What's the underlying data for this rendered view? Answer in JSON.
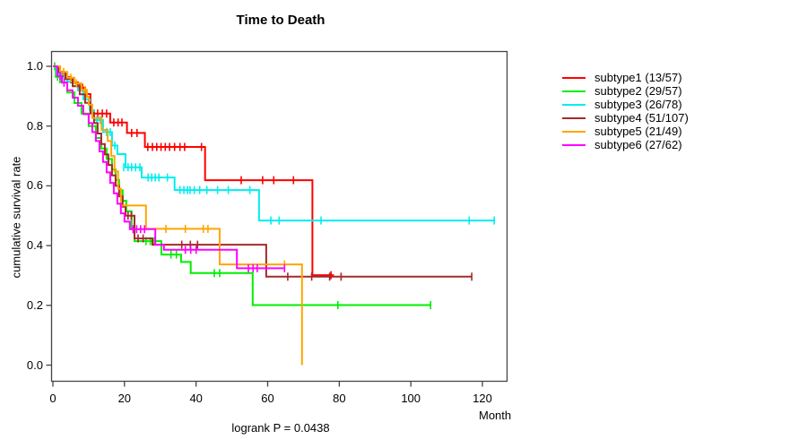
{
  "page_background": "#ffffff",
  "chart_data": {
    "type": "line",
    "variant": "kaplan-meier-step-curves",
    "title": "Time to Death",
    "xlabel": "Month",
    "ylabel": "cumulative survival rate",
    "annotation": "logrank P = 0.0438",
    "xlim": [
      0,
      127
    ],
    "ylim": [
      0.0,
      1.0
    ],
    "x_ticks": [
      0,
      20,
      40,
      60,
      80,
      100,
      120
    ],
    "y_tick_labels": [
      "0.0",
      "0.2",
      "0.4",
      "0.6",
      "0.8",
      "1.0"
    ],
    "y_tick_values": [
      0.0,
      0.2,
      0.4,
      0.6,
      0.8,
      1.0
    ],
    "grid": false,
    "legend_position": "right",
    "axis_color": "#444444",
    "series": [
      {
        "label": "subtype1 (13/57)",
        "events": "13/57",
        "color": "#ff0000",
        "steps": [
          [
            0,
            1.0
          ],
          [
            1.5,
            0.982
          ],
          [
            3,
            0.964
          ],
          [
            5,
            0.946
          ],
          [
            7,
            0.928
          ],
          [
            9,
            0.907
          ],
          [
            10.5,
            0.842
          ],
          [
            16,
            0.812
          ],
          [
            20.7,
            0.777
          ],
          [
            25.7,
            0.73
          ],
          [
            42.5,
            0.619
          ],
          [
            72.5,
            0.301
          ],
          [
            78.5,
            0.301
          ]
        ],
        "censors": [
          [
            7.5,
            0.928
          ],
          [
            8.3,
            0.928
          ],
          [
            12.5,
            0.842
          ],
          [
            13.8,
            0.842
          ],
          [
            15,
            0.842
          ],
          [
            17,
            0.812
          ],
          [
            18.2,
            0.812
          ],
          [
            19.3,
            0.812
          ],
          [
            22,
            0.777
          ],
          [
            23.5,
            0.777
          ],
          [
            26.5,
            0.73
          ],
          [
            27.8,
            0.73
          ],
          [
            29,
            0.73
          ],
          [
            30.2,
            0.73
          ],
          [
            31.4,
            0.73
          ],
          [
            32.6,
            0.73
          ],
          [
            34,
            0.73
          ],
          [
            35.5,
            0.73
          ],
          [
            36.8,
            0.73
          ],
          [
            41.5,
            0.73
          ],
          [
            52.6,
            0.619
          ],
          [
            58.6,
            0.619
          ],
          [
            61.7,
            0.619
          ],
          [
            67.2,
            0.619
          ],
          [
            77.7,
            0.301
          ]
        ]
      },
      {
        "label": "subtype2 (29/57)",
        "events": "29/57",
        "color": "#00ee00",
        "steps": [
          [
            0,
            1.0
          ],
          [
            0.8,
            0.965
          ],
          [
            2,
            0.947
          ],
          [
            4,
            0.912
          ],
          [
            6,
            0.877
          ],
          [
            8,
            0.842
          ],
          [
            10,
            0.8
          ],
          [
            12,
            0.76
          ],
          [
            13.5,
            0.725
          ],
          [
            15,
            0.69
          ],
          [
            16.5,
            0.655
          ],
          [
            17.5,
            0.62
          ],
          [
            18.5,
            0.585
          ],
          [
            19.5,
            0.55
          ],
          [
            20.5,
            0.515
          ],
          [
            22,
            0.46
          ],
          [
            22.8,
            0.415
          ],
          [
            30.3,
            0.37
          ],
          [
            35.8,
            0.345
          ],
          [
            38.5,
            0.308
          ],
          [
            55.8,
            0.201
          ],
          [
            105.5,
            0.201
          ]
        ],
        "censors": [
          [
            0.5,
            1.0
          ],
          [
            1.3,
            0.965
          ],
          [
            26,
            0.415
          ],
          [
            27.2,
            0.415
          ],
          [
            28.3,
            0.415
          ],
          [
            33,
            0.37
          ],
          [
            34.5,
            0.37
          ],
          [
            45.1,
            0.308
          ],
          [
            46.6,
            0.308
          ],
          [
            79.6,
            0.201
          ],
          [
            105.5,
            0.201
          ]
        ]
      },
      {
        "label": "subtype3 (26/78)",
        "events": "26/78",
        "color": "#00eeee",
        "steps": [
          [
            0,
            1.0
          ],
          [
            1,
            0.974
          ],
          [
            2.5,
            0.961
          ],
          [
            4,
            0.948
          ],
          [
            5.5,
            0.935
          ],
          [
            7,
            0.92
          ],
          [
            8.5,
            0.89
          ],
          [
            10.3,
            0.853
          ],
          [
            11.5,
            0.82
          ],
          [
            14,
            0.78
          ],
          [
            16.5,
            0.735
          ],
          [
            18,
            0.706
          ],
          [
            20.3,
            0.662
          ],
          [
            24.8,
            0.628
          ],
          [
            34,
            0.586
          ],
          [
            57.6,
            0.484
          ],
          [
            123.3,
            0.484
          ]
        ],
        "censors": [
          [
            2,
            0.974
          ],
          [
            3.2,
            0.961
          ],
          [
            9,
            0.89
          ],
          [
            12.3,
            0.82
          ],
          [
            13.2,
            0.82
          ],
          [
            15,
            0.78
          ],
          [
            16,
            0.78
          ],
          [
            17.3,
            0.735
          ],
          [
            19.8,
            0.662
          ],
          [
            21,
            0.662
          ],
          [
            22,
            0.662
          ],
          [
            23.1,
            0.662
          ],
          [
            24.3,
            0.662
          ],
          [
            26.6,
            0.628
          ],
          [
            27.6,
            0.628
          ],
          [
            28.6,
            0.628
          ],
          [
            29.6,
            0.628
          ],
          [
            32,
            0.628
          ],
          [
            35.5,
            0.586
          ],
          [
            36.6,
            0.586
          ],
          [
            37.6,
            0.586
          ],
          [
            38.3,
            0.586
          ],
          [
            39.5,
            0.586
          ],
          [
            41,
            0.586
          ],
          [
            43,
            0.586
          ],
          [
            46,
            0.586
          ],
          [
            49,
            0.586
          ],
          [
            55,
            0.586
          ],
          [
            60.9,
            0.484
          ],
          [
            63.2,
            0.484
          ],
          [
            74.9,
            0.484
          ],
          [
            116.3,
            0.484
          ],
          [
            123.3,
            0.484
          ]
        ]
      },
      {
        "label": "subtype4 (51/107)",
        "events": "51/107",
        "color": "#a52a2a",
        "steps": [
          [
            0,
            1.0
          ],
          [
            1.5,
            0.98
          ],
          [
            3.5,
            0.957
          ],
          [
            5.5,
            0.933
          ],
          [
            7.5,
            0.906
          ],
          [
            9,
            0.878
          ],
          [
            10.5,
            0.845
          ],
          [
            11.5,
            0.81
          ],
          [
            12.5,
            0.775
          ],
          [
            13.5,
            0.74
          ],
          [
            14.5,
            0.705
          ],
          [
            15.5,
            0.67
          ],
          [
            16.5,
            0.635
          ],
          [
            17.5,
            0.6
          ],
          [
            18.5,
            0.565
          ],
          [
            19.5,
            0.53
          ],
          [
            20.3,
            0.5
          ],
          [
            22.8,
            0.424
          ],
          [
            27.8,
            0.403
          ],
          [
            59.6,
            0.296
          ],
          [
            117,
            0.296
          ]
        ],
        "censors": [
          [
            21,
            0.5
          ],
          [
            21.9,
            0.5
          ],
          [
            23.8,
            0.424
          ],
          [
            25.2,
            0.424
          ],
          [
            36,
            0.403
          ],
          [
            38.4,
            0.403
          ],
          [
            40.4,
            0.403
          ],
          [
            65.6,
            0.296
          ],
          [
            72.3,
            0.296
          ],
          [
            77.3,
            0.296
          ],
          [
            80.5,
            0.296
          ],
          [
            117,
            0.296
          ]
        ]
      },
      {
        "label": "subtype5 (21/49)",
        "events": "21/49",
        "color": "#ffa500",
        "steps": [
          [
            0,
            1.0
          ],
          [
            2,
            0.981
          ],
          [
            4,
            0.962
          ],
          [
            6,
            0.943
          ],
          [
            8,
            0.921
          ],
          [
            9.5,
            0.898
          ],
          [
            10,
            0.872
          ],
          [
            11,
            0.827
          ],
          [
            13.6,
            0.787
          ],
          [
            15.3,
            0.75
          ],
          [
            16.3,
            0.7
          ],
          [
            17.2,
            0.648
          ],
          [
            18.2,
            0.59
          ],
          [
            19,
            0.534
          ],
          [
            26,
            0.456
          ],
          [
            46.6,
            0.337
          ],
          [
            69.6,
            0.0
          ]
        ],
        "censors": [
          [
            3,
            0.981
          ],
          [
            5,
            0.962
          ],
          [
            6.6,
            0.943
          ],
          [
            9,
            0.921
          ],
          [
            31.6,
            0.456
          ],
          [
            37,
            0.456
          ],
          [
            42,
            0.456
          ],
          [
            43.3,
            0.456
          ],
          [
            64.7,
            0.337
          ]
        ]
      },
      {
        "label": "subtype6 (27/62)",
        "events": "27/62",
        "color": "#ff00ff",
        "steps": [
          [
            0,
            1.0
          ],
          [
            1.2,
            0.968
          ],
          [
            2.5,
            0.945
          ],
          [
            4,
            0.92
          ],
          [
            5.5,
            0.895
          ],
          [
            7,
            0.868
          ],
          [
            8.5,
            0.84
          ],
          [
            10,
            0.81
          ],
          [
            11,
            0.78
          ],
          [
            12,
            0.75
          ],
          [
            13,
            0.715
          ],
          [
            14,
            0.68
          ],
          [
            15,
            0.645
          ],
          [
            16,
            0.61
          ],
          [
            17,
            0.575
          ],
          [
            18,
            0.54
          ],
          [
            19,
            0.508
          ],
          [
            20,
            0.48
          ],
          [
            21.5,
            0.455
          ],
          [
            28.6,
            0.403
          ],
          [
            31,
            0.386
          ],
          [
            51.4,
            0.324
          ],
          [
            64.7,
            0.324
          ]
        ],
        "censors": [
          [
            2,
            0.968
          ],
          [
            3.1,
            0.945
          ],
          [
            22.4,
            0.455
          ],
          [
            23.4,
            0.455
          ],
          [
            24.5,
            0.455
          ],
          [
            25.6,
            0.455
          ],
          [
            37,
            0.386
          ],
          [
            38.5,
            0.386
          ],
          [
            40,
            0.386
          ],
          [
            54.6,
            0.324
          ],
          [
            55.9,
            0.324
          ],
          [
            57.1,
            0.324
          ],
          [
            64.7,
            0.324
          ]
        ]
      }
    ]
  }
}
